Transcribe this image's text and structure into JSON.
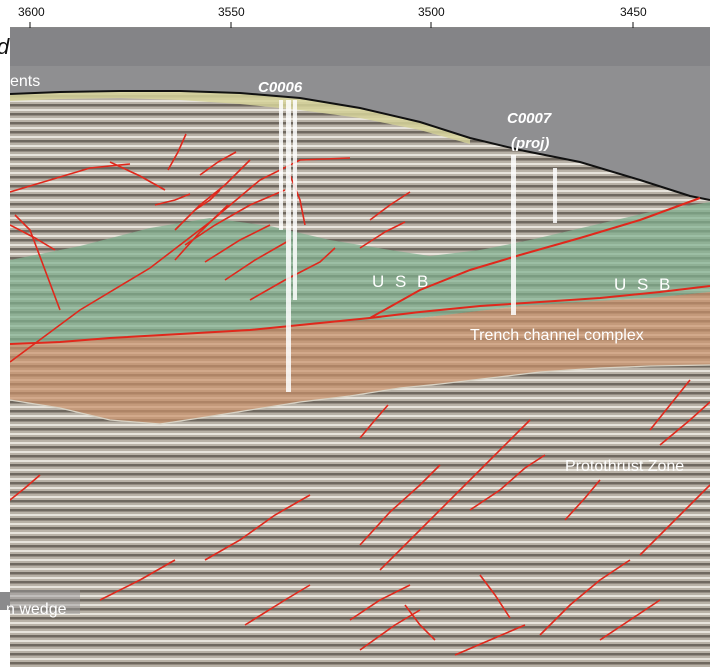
{
  "axis": {
    "ticks": [
      "3600",
      "3550",
      "3500",
      "3450"
    ]
  },
  "corner_letter": "d",
  "wells": {
    "c0006": "C0006",
    "c0007_line1": "C0007",
    "c0007_line2": "(proj)"
  },
  "units": {
    "sediments_partial": "ents",
    "usb_left": "U S B",
    "usb_right": "U S B",
    "trench_channel": "Trench channel complex",
    "protothrust": "Protothrust Zone",
    "wedge_partial": "n wedge"
  },
  "colors": {
    "water": "#8f8f91",
    "slope_sediment": "#d6d39a",
    "usb": "#7fb08f",
    "trench_channel": "#c9906a",
    "faults": "#e0281c",
    "seismic_base": "#b5aea4"
  }
}
